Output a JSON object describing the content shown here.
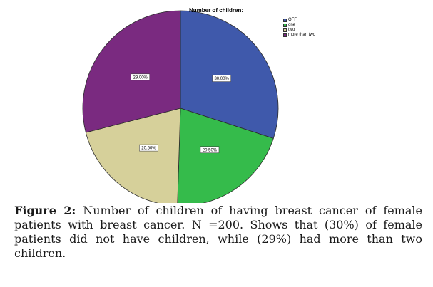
{
  "chart_data": {
    "type": "pie",
    "title": "Number of children:",
    "categories": [
      "OFF",
      "one",
      "two",
      "more than two"
    ],
    "values": [
      30.0,
      20.5,
      20.5,
      29.0
    ],
    "data_labels": [
      "30.00%",
      "20.50%",
      "20.50%",
      "29.00%"
    ],
    "colors": [
      "#3f59ab",
      "#35bb4b",
      "#d6d09a",
      "#7a2a80"
    ],
    "legend_position": "top-right"
  },
  "caption": {
    "label": "Figure 2:",
    "text": " Number of children of having breast cancer of female patients with breast cancer. N =200. Shows that (30%) of female patients did not have children, while (29%) had more than two children."
  }
}
